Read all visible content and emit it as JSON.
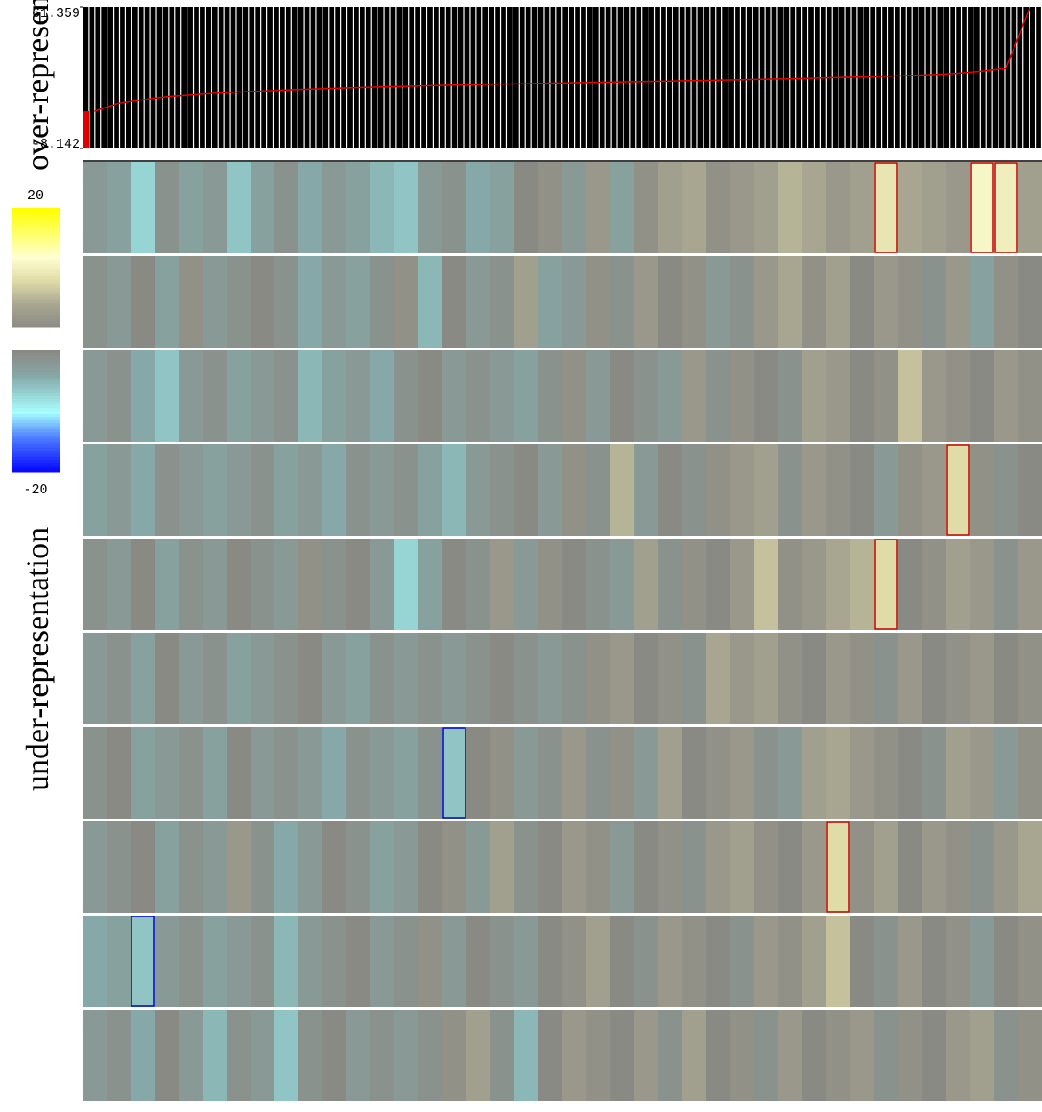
{
  "chart_data": [
    {
      "type": "line",
      "color": "#e00000",
      "ylim": [
        -8.142,
        61.359
      ],
      "yticks": [
        61.359,
        -8.142
      ],
      "values": [
        10.2,
        14.0,
        15.8,
        17.3,
        18.2,
        19.0,
        19.6,
        20.1,
        20.6,
        21.0,
        21.4,
        21.8,
        22.1,
        22.4,
        22.7,
        23.0,
        23.2,
        23.5,
        23.7,
        24.0,
        24.2,
        24.4,
        24.6,
        24.8,
        25.0,
        25.2,
        25.4,
        25.6,
        25.9,
        26.1,
        26.4,
        26.7,
        27.0,
        27.3,
        27.7,
        28.2,
        28.8,
        29.8,
        31.2,
        61.359
      ]
    },
    {
      "type": "heatmap",
      "label_high": "over-representation",
      "label_low": "under-representation",
      "clim": [
        -20,
        20
      ],
      "cticks": [
        20,
        -20
      ],
      "colorscale": [
        [
          -20,
          "#0000ff"
        ],
        [
          -14,
          "#5080ff"
        ],
        [
          -10,
          "#a8ffff"
        ],
        [
          -4,
          "#86a8a8"
        ],
        [
          0,
          "#8a8a84"
        ],
        [
          4,
          "#a8a690"
        ],
        [
          8,
          "#e0dca8"
        ],
        [
          12,
          "#ffffd0"
        ],
        [
          20,
          "#ffff00"
        ]
      ],
      "outlined": [
        {
          "row": 0,
          "col": 33,
          "color": "#c00000"
        },
        {
          "row": 0,
          "col": 37,
          "color": "#c00000"
        },
        {
          "row": 0,
          "col": 38,
          "color": "#c00000"
        },
        {
          "row": 3,
          "col": 36,
          "color": "#c00000"
        },
        {
          "row": 4,
          "col": 33,
          "color": "#c00000"
        },
        {
          "row": 6,
          "col": 15,
          "color": "#0000d0"
        },
        {
          "row": 7,
          "col": 31,
          "color": "#c00000"
        },
        {
          "row": 8,
          "col": 2,
          "color": "#0000d0"
        }
      ],
      "matrix": [
        [
          -2,
          -3,
          -7,
          -1,
          -3,
          -2,
          -6,
          -3,
          -1,
          -4,
          -2,
          -3,
          -5,
          -6,
          -2,
          -1,
          -4,
          -3,
          0,
          1,
          -2,
          2,
          -3,
          1,
          3,
          4,
          1,
          2,
          3,
          5,
          4,
          2,
          3,
          9,
          4,
          3,
          2,
          11,
          10,
          3
        ],
        [
          -1,
          -2,
          0,
          -3,
          1,
          -2,
          -1,
          0,
          -1,
          -4,
          -2,
          -3,
          -1,
          1,
          -5,
          0,
          -2,
          -1,
          3,
          -3,
          -2,
          1,
          -1,
          2,
          0,
          1,
          -2,
          -1,
          2,
          4,
          1,
          3,
          0,
          2,
          1,
          -1,
          2,
          -3,
          1,
          0
        ],
        [
          -2,
          -1,
          -4,
          -6,
          -2,
          -1,
          -3,
          -2,
          -1,
          -5,
          -3,
          -2,
          -4,
          -1,
          0,
          -2,
          -1,
          -2,
          -3,
          -1,
          1,
          -2,
          0,
          -1,
          -2,
          2,
          -1,
          1,
          0,
          -1,
          3,
          2,
          0,
          1,
          6,
          2,
          1,
          0,
          2,
          1
        ],
        [
          -3,
          -2,
          -4,
          -1,
          -2,
          -3,
          -2,
          -1,
          -3,
          -2,
          -4,
          -1,
          -2,
          -1,
          -3,
          -5,
          -2,
          -1,
          0,
          -2,
          1,
          -1,
          5,
          -2,
          0,
          -1,
          1,
          2,
          3,
          -1,
          2,
          1,
          0,
          -2,
          1,
          2,
          8,
          1,
          -1,
          0
        ],
        [
          -1,
          -2,
          0,
          -3,
          -1,
          -2,
          0,
          -1,
          -2,
          1,
          -1,
          0,
          -2,
          -7,
          -3,
          0,
          -1,
          2,
          -2,
          1,
          0,
          -1,
          -2,
          3,
          -1,
          1,
          0,
          2,
          6,
          1,
          2,
          4,
          5,
          8,
          0,
          1,
          3,
          2,
          -1,
          2
        ],
        [
          -2,
          -1,
          -3,
          0,
          -2,
          -1,
          -3,
          -2,
          -1,
          0,
          -2,
          -3,
          -1,
          -2,
          -1,
          -2,
          -1,
          0,
          -1,
          -2,
          -1,
          1,
          2,
          0,
          1,
          -1,
          4,
          2,
          3,
          1,
          0,
          2,
          1,
          -1,
          2,
          0,
          1,
          2,
          0,
          1
        ],
        [
          -1,
          0,
          -3,
          -2,
          -1,
          -3,
          0,
          -2,
          -1,
          -2,
          -4,
          -1,
          -2,
          -3,
          -1,
          -6,
          0,
          1,
          -2,
          -1,
          2,
          -1,
          1,
          -2,
          3,
          0,
          1,
          2,
          -1,
          -2,
          3,
          4,
          2,
          1,
          0,
          -1,
          3,
          2,
          -2,
          1
        ],
        [
          -2,
          -1,
          0,
          -3,
          -1,
          -2,
          2,
          -1,
          -4,
          -2,
          0,
          -1,
          -3,
          -2,
          0,
          1,
          -2,
          3,
          -1,
          0,
          2,
          1,
          -2,
          0,
          1,
          -1,
          2,
          3,
          1,
          0,
          2,
          8,
          1,
          3,
          0,
          2,
          1,
          -1,
          2,
          4
        ],
        [
          -4,
          -3,
          -6,
          -2,
          -1,
          -3,
          -2,
          -1,
          -5,
          -2,
          -1,
          0,
          -2,
          -1,
          1,
          -2,
          0,
          -1,
          -2,
          0,
          1,
          3,
          0,
          -1,
          2,
          1,
          0,
          -1,
          2,
          1,
          3,
          6,
          0,
          -1,
          2,
          0,
          1,
          -2,
          0,
          1
        ],
        [
          -2,
          -1,
          -4,
          0,
          -2,
          -5,
          -1,
          -2,
          -6,
          -1,
          0,
          -2,
          -1,
          -2,
          -1,
          1,
          3,
          -1,
          -5,
          0,
          2,
          1,
          0,
          2,
          -1,
          3,
          0,
          1,
          -1,
          2,
          0,
          1,
          2,
          -1,
          1,
          0,
          2,
          3,
          -1,
          1
        ]
      ]
    }
  ]
}
